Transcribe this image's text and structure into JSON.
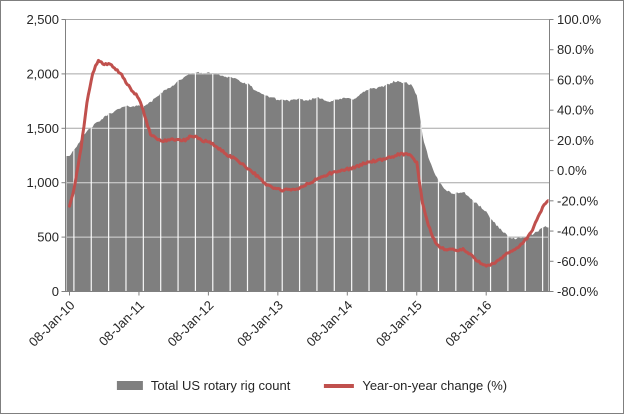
{
  "window": {
    "background": "#FFFFFF",
    "frame_border_color": "#7F7F7F"
  },
  "chart_data": {
    "type": "combo",
    "title": "",
    "subtitle": "",
    "grid": true,
    "legend_position": "bottom",
    "colors": {
      "bar": "#7F7F7F",
      "line": "#C0504D",
      "gridline": "#A6A6A6",
      "axis": "#808080",
      "text": "#262626",
      "bar_separator": "#FFFFFF"
    },
    "x_axis": {
      "unit": "monthly points, Jan-2010 through Dec-2016",
      "tick_labels": [
        "08-Jan-10",
        "08-Jan-11",
        "08-Jan-12",
        "08-Jan-13",
        "08-Jan-14",
        "08-Jan-15",
        "08-Jan-16"
      ],
      "tick_month_index": [
        0,
        12,
        24,
        36,
        48,
        60,
        72
      ],
      "label_rotation_deg": -45
    },
    "y_axis_left": {
      "min": 0,
      "max": 2500,
      "tick_values": [
        0,
        500,
        1000,
        1500,
        2000,
        2500
      ],
      "tick_labels": [
        "0",
        "500",
        "1,000",
        "1,500",
        "2,000",
        "2,500"
      ]
    },
    "y_axis_right": {
      "min": -80,
      "max": 100,
      "tick_values": [
        100,
        80,
        60,
        40,
        20,
        0,
        -20,
        -40,
        -60,
        -80
      ],
      "tick_labels": [
        "100.0%",
        "80.0%",
        "60.0%",
        "40.0%",
        "20.0%",
        "0.0%",
        "-20.0%",
        "-40.0%",
        "-60.0%",
        "-80.0%"
      ]
    },
    "series": [
      {
        "name": "Total US rotary rig count",
        "type": "bar",
        "axis": "left",
        "color": "#7F7F7F",
        "values": [
          1250,
          1320,
          1400,
          1470,
          1520,
          1560,
          1600,
          1640,
          1660,
          1690,
          1700,
          1705,
          1705,
          1715,
          1735,
          1790,
          1830,
          1865,
          1900,
          1945,
          1970,
          2005,
          2010,
          2005,
          2005,
          2000,
          1990,
          1975,
          1970,
          1950,
          1915,
          1900,
          1855,
          1815,
          1800,
          1785,
          1760,
          1762,
          1755,
          1760,
          1765,
          1755,
          1770,
          1785,
          1765,
          1745,
          1760,
          1772,
          1775,
          1770,
          1800,
          1840,
          1865,
          1865,
          1880,
          1905,
          1930,
          1925,
          1920,
          1900,
          1810,
          1430,
          1230,
          1090,
          1000,
          935,
          905,
          900,
          920,
          870,
          820,
          780,
          730,
          655,
          600,
          545,
          500,
          485,
          490,
          505,
          525,
          555,
          590,
          595
        ]
      },
      {
        "name": "Year-on-year change (%)",
        "type": "line",
        "axis": "right",
        "color": "#C0504D",
        "values": [
          -24,
          -8,
          15,
          45,
          65,
          73,
          70,
          71,
          67,
          63,
          57,
          52,
          48,
          36,
          24,
          21,
          20,
          20,
          21,
          20,
          20,
          23,
          22,
          20,
          19,
          17,
          14,
          11,
          9,
          7,
          4,
          1,
          -2,
          -6,
          -9,
          -11,
          -12.5,
          -13,
          -12.5,
          -13,
          -11,
          -9,
          -7.5,
          -5,
          -3.5,
          -2,
          -1,
          0,
          1,
          2,
          3,
          5,
          6,
          6.5,
          7,
          8,
          9.5,
          11,
          11,
          10,
          5,
          -22,
          -36,
          -46,
          -51,
          -52,
          -52,
          -53,
          -52,
          -55,
          -58,
          -61,
          -62.5,
          -62,
          -60,
          -57,
          -54,
          -52,
          -49,
          -45,
          -39,
          -31,
          -22,
          -20
        ]
      }
    ]
  },
  "legend": {
    "items": [
      {
        "label": "Total US rotary rig count",
        "swatch": "gray-bar"
      },
      {
        "label": "Year-on-year change (%)",
        "swatch": "red-line"
      }
    ]
  }
}
